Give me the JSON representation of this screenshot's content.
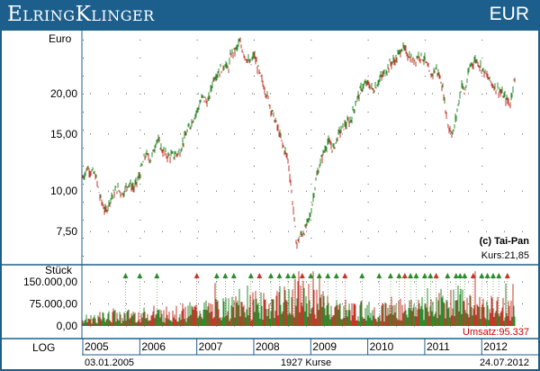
{
  "header": {
    "brand": "ElringKlinger",
    "currency": "EUR"
  },
  "price_panel": {
    "unit_label": "Euro",
    "credit": "(c) Tai-Pan",
    "kurs_label": "Kurs:21,85"
  },
  "volume_panel": {
    "unit_label": "Stück",
    "umsatz_label": "Umsatz:95.337"
  },
  "footer": {
    "scale_label": "LOG",
    "start_date": "03.01.2005",
    "count_label": "1927 Kurse",
    "end_date": "24.07.2012"
  },
  "colors": {
    "frame": "#1c5f8c",
    "up": "#2e8b2e",
    "down": "#c0392b",
    "umsatz": "#cc0000"
  },
  "chart_data": [
    {
      "type": "line",
      "title": "",
      "ylabel": "Euro",
      "scale": "log",
      "ylim": [
        6.0,
        30.5
      ],
      "xlim": [
        2005.0,
        2012.58
      ],
      "y_ticks": [
        {
          "value": 7.5,
          "label": "7,50"
        },
        {
          "value": 10,
          "label": "10,00"
        },
        {
          "value": 15,
          "label": "15,00"
        },
        {
          "value": 20,
          "label": "20,00"
        }
      ],
      "x_ticks": [
        "2005",
        "2006",
        "2007",
        "2008",
        "2009",
        "2010",
        "2011",
        "2012"
      ],
      "grid": true,
      "series": [
        {
          "x": [
            2005.0,
            2005.08,
            2005.15,
            2005.22,
            2005.3,
            2005.4,
            2005.5,
            2005.6,
            2005.7,
            2005.8,
            2005.9,
            2006.0,
            2006.1,
            2006.2,
            2006.3,
            2006.4,
            2006.5,
            2006.6,
            2006.7,
            2006.8,
            2006.9,
            2007.0,
            2007.1,
            2007.2,
            2007.3,
            2007.4,
            2007.5,
            2007.55,
            2007.6,
            2007.7,
            2007.75,
            2007.85,
            2007.95,
            2008.0,
            2008.1,
            2008.2,
            2008.3,
            2008.4,
            2008.5,
            2008.6,
            2008.7,
            2008.75,
            2008.8,
            2008.9,
            2009.0,
            2009.1,
            2009.2,
            2009.3,
            2009.4,
            2009.5,
            2009.6,
            2009.7,
            2009.8,
            2009.9,
            2010.0,
            2010.1,
            2010.2,
            2010.3,
            2010.4,
            2010.5,
            2010.6,
            2010.7,
            2010.8,
            2010.9,
            2011.0,
            2011.1,
            2011.2,
            2011.3,
            2011.4,
            2011.5,
            2011.6,
            2011.65,
            2011.7,
            2011.8,
            2011.9,
            2012.0,
            2012.1,
            2012.2,
            2012.3,
            2012.4,
            2012.5,
            2012.56
          ],
          "y": [
            11.0,
            11.8,
            11.5,
            11.2,
            9.6,
            8.6,
            9.6,
            10.2,
            9.8,
            10.6,
            10.2,
            11.2,
            13.0,
            12.5,
            14.5,
            13.3,
            12.8,
            12.9,
            13.2,
            14.8,
            16.2,
            17.6,
            19.5,
            18.8,
            22.5,
            23.5,
            24.8,
            23.5,
            26.5,
            27.5,
            28.8,
            26.0,
            24.5,
            26.5,
            23.0,
            20.5,
            18.0,
            16.0,
            14.0,
            12.5,
            8.5,
            6.8,
            7.2,
            7.6,
            8.5,
            11.0,
            12.8,
            14.2,
            13.5,
            15.2,
            16.0,
            16.5,
            19.0,
            21.0,
            21.5,
            20.5,
            22.0,
            23.2,
            24.8,
            25.5,
            27.8,
            26.5,
            25.2,
            26.3,
            25.5,
            22.5,
            24.0,
            21.5,
            16.0,
            15.0,
            19.0,
            21.5,
            20.0,
            24.5,
            25.5,
            24.0,
            22.5,
            21.2,
            20.5,
            19.5,
            18.5,
            21.85
          ]
        }
      ]
    },
    {
      "type": "bar",
      "title": "",
      "ylabel": "Stück",
      "ylim": [
        0,
        190000
      ],
      "y_ticks": [
        {
          "value": 0,
          "label": "0,00"
        },
        {
          "value": 75000,
          "label": "75.000,00"
        },
        {
          "value": 150000,
          "label": "150.000,00"
        }
      ],
      "x_ticks": [
        "2005",
        "2006",
        "2007",
        "2008",
        "2009",
        "2010",
        "2011",
        "2012"
      ],
      "volume_profile": {
        "x": [
          2005.0,
          2005.5,
          2006.0,
          2006.5,
          2007.0,
          2007.5,
          2008.0,
          2008.5,
          2008.75,
          2009.0,
          2009.5,
          2010.0,
          2010.5,
          2011.0,
          2011.5,
          2012.0,
          2012.56
        ],
        "y": [
          25000,
          35000,
          40000,
          45000,
          55000,
          65000,
          70000,
          85000,
          110000,
          95000,
          60000,
          55000,
          60000,
          70000,
          95000,
          70000,
          60000
        ]
      }
    }
  ]
}
